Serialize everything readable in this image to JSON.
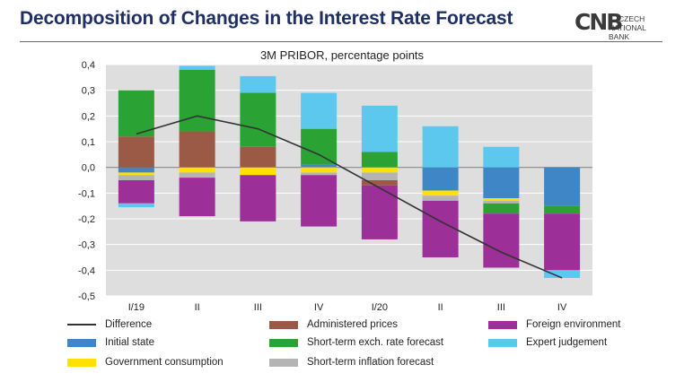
{
  "header": {
    "title": "Decomposition of Changes in the Interest Rate Forecast",
    "logo_mark": "CNB",
    "logo_line1": "CZECH",
    "logo_line2": "NATIONAL BANK"
  },
  "chart_data": {
    "type": "bar",
    "stacked": true,
    "title": "3M PRIBOR, percentage points",
    "xlabel": "",
    "ylabel": "",
    "ylim": [
      -0.5,
      0.4
    ],
    "ytick_step": 0.1,
    "yticks": [
      "0,4",
      "0,3",
      "0,2",
      "0,1",
      "0,0",
      "-0,1",
      "-0,2",
      "-0,3",
      "-0,4",
      "-0,5"
    ],
    "grid": true,
    "legend_position": "bottom",
    "categories": [
      "I/19",
      "II",
      "III",
      "IV",
      "I/20",
      "II",
      "III",
      "IV"
    ],
    "series": [
      {
        "name": "Initial state",
        "color": "#3f86c6",
        "values": [
          -0.02,
          0.0,
          0.0,
          0.01,
          0.0,
          -0.09,
          -0.12,
          -0.15
        ]
      },
      {
        "name": "Government consumption",
        "color": "#ffe000",
        "values": [
          -0.01,
          -0.02,
          -0.03,
          -0.02,
          -0.02,
          -0.02,
          -0.01,
          0.0
        ]
      },
      {
        "name": "Short-term inflation forecast",
        "color": "#b4b4b4",
        "values": [
          -0.02,
          -0.02,
          0.0,
          -0.01,
          -0.03,
          -0.02,
          -0.01,
          0.0
        ]
      },
      {
        "name": "Administered prices",
        "color": "#9b5a46",
        "values": [
          0.12,
          0.14,
          0.08,
          0.0,
          -0.02,
          0.0,
          0.0,
          0.0
        ]
      },
      {
        "name": "Short-term exch. rate forecast",
        "color": "#2ba334",
        "values": [
          0.18,
          0.24,
          0.21,
          0.14,
          0.06,
          0.0,
          -0.04,
          -0.03
        ]
      },
      {
        "name": "Foreign environment",
        "color": "#9c2f98",
        "values": [
          -0.09,
          -0.15,
          -0.18,
          -0.2,
          -0.21,
          -0.22,
          -0.21,
          -0.22
        ]
      },
      {
        "name": "Expert judgement",
        "color": "#5cc8ee",
        "values": [
          -0.015,
          0.015,
          0.065,
          0.14,
          0.18,
          0.16,
          0.08,
          -0.03
        ]
      }
    ],
    "line": {
      "name": "Difference",
      "color": "#333333",
      "values": [
        0.13,
        0.2,
        0.15,
        0.05,
        -0.08,
        -0.21,
        -0.33,
        -0.43
      ]
    }
  }
}
